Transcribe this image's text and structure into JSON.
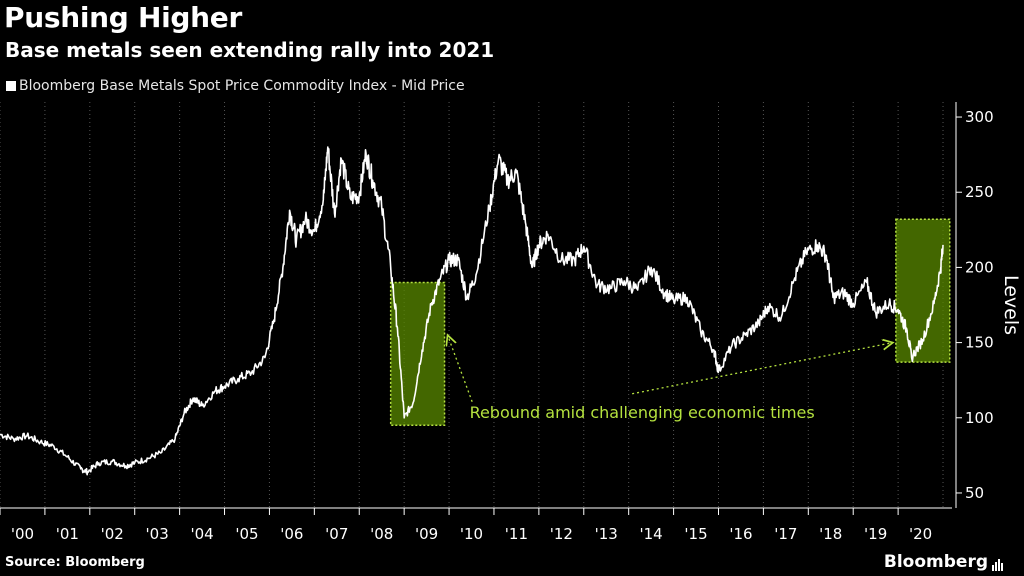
{
  "header": {
    "title": "Pushing Higher",
    "subtitle": "Base metals seen extending rally into 2021"
  },
  "legend": {
    "label": "Bloomberg Base Metals Spot Price Commodity Index - Mid Price"
  },
  "footer": {
    "source": "Source: Bloomberg",
    "brand": "Bloomberg"
  },
  "colors": {
    "line": "#ffffff",
    "highlight_fill": "#5a8a00",
    "highlight_border": "#b5e23f",
    "annotation": "#b5e23f",
    "axis": "#ffffff"
  },
  "chart_data": {
    "type": "line",
    "title": "Pushing Higher",
    "subtitle": "Base metals seen extending rally into 2021",
    "series": [
      {
        "name": "Bloomberg Base Metals Spot Price Commodity Index - Mid Price",
        "points": [
          [
            2000.0,
            89
          ],
          [
            2000.3,
            86
          ],
          [
            2000.6,
            88
          ],
          [
            2000.9,
            84
          ],
          [
            2001.2,
            81
          ],
          [
            2001.5,
            74
          ],
          [
            2001.8,
            66
          ],
          [
            2001.95,
            64
          ],
          [
            2002.2,
            70
          ],
          [
            2002.5,
            71
          ],
          [
            2002.8,
            68
          ],
          [
            2003.0,
            70
          ],
          [
            2003.3,
            73
          ],
          [
            2003.6,
            77
          ],
          [
            2003.9,
            86
          ],
          [
            2004.1,
            103
          ],
          [
            2004.3,
            113
          ],
          [
            2004.5,
            108
          ],
          [
            2004.8,
            118
          ],
          [
            2005.0,
            121
          ],
          [
            2005.3,
            126
          ],
          [
            2005.6,
            130
          ],
          [
            2005.9,
            140
          ],
          [
            2006.1,
            165
          ],
          [
            2006.3,
            200
          ],
          [
            2006.45,
            238
          ],
          [
            2006.6,
            218
          ],
          [
            2006.8,
            232
          ],
          [
            2007.0,
            224
          ],
          [
            2007.2,
            245
          ],
          [
            2007.3,
            280
          ],
          [
            2007.45,
            236
          ],
          [
            2007.6,
            272
          ],
          [
            2007.8,
            246
          ],
          [
            2008.0,
            248
          ],
          [
            2008.15,
            276
          ],
          [
            2008.3,
            258
          ],
          [
            2008.5,
            240
          ],
          [
            2008.7,
            200
          ],
          [
            2008.85,
            160
          ],
          [
            2009.0,
            100
          ],
          [
            2009.2,
            110
          ],
          [
            2009.4,
            145
          ],
          [
            2009.6,
            175
          ],
          [
            2009.8,
            192
          ],
          [
            2010.0,
            205
          ],
          [
            2010.2,
            205
          ],
          [
            2010.4,
            180
          ],
          [
            2010.6,
            195
          ],
          [
            2010.9,
            240
          ],
          [
            2011.1,
            272
          ],
          [
            2011.3,
            258
          ],
          [
            2011.5,
            263
          ],
          [
            2011.7,
            230
          ],
          [
            2011.85,
            200
          ],
          [
            2012.0,
            215
          ],
          [
            2012.2,
            222
          ],
          [
            2012.5,
            205
          ],
          [
            2012.8,
            205
          ],
          [
            2013.0,
            214
          ],
          [
            2013.3,
            188
          ],
          [
            2013.6,
            186
          ],
          [
            2013.9,
            191
          ],
          [
            2014.2,
            185
          ],
          [
            2014.5,
            200
          ],
          [
            2014.8,
            183
          ],
          [
            2015.0,
            178
          ],
          [
            2015.3,
            180
          ],
          [
            2015.6,
            158
          ],
          [
            2015.9,
            145
          ],
          [
            2016.0,
            131
          ],
          [
            2016.3,
            148
          ],
          [
            2016.6,
            155
          ],
          [
            2016.9,
            163
          ],
          [
            2017.1,
            174
          ],
          [
            2017.4,
            167
          ],
          [
            2017.7,
            193
          ],
          [
            2017.95,
            210
          ],
          [
            2018.2,
            215
          ],
          [
            2018.4,
            208
          ],
          [
            2018.55,
            180
          ],
          [
            2018.8,
            183
          ],
          [
            2019.0,
            176
          ],
          [
            2019.3,
            190
          ],
          [
            2019.5,
            170
          ],
          [
            2019.8,
            176
          ],
          [
            2020.0,
            172
          ],
          [
            2020.2,
            158
          ],
          [
            2020.3,
            140
          ],
          [
            2020.55,
            152
          ],
          [
            2020.8,
            176
          ],
          [
            2020.95,
            200
          ],
          [
            2021.0,
            215
          ]
        ]
      }
    ],
    "x_tick_labels": [
      "'00",
      "'01",
      "'02",
      "'03",
      "'04",
      "'05",
      "'06",
      "'07",
      "'08",
      "'09",
      "'10",
      "'11",
      "'12",
      "'13",
      "'14",
      "'15",
      "'16",
      "'17",
      "'18",
      "'19",
      "'20"
    ],
    "x_range": [
      2000,
      2021.2
    ],
    "ylabel": "Levels",
    "ylim": [
      40,
      310
    ],
    "yticks": [
      50,
      100,
      150,
      200,
      250,
      300
    ],
    "grid": "vertical dotted at year boundaries",
    "highlights": [
      {
        "x_range": [
          2008.7,
          2009.9
        ],
        "y_range": [
          95,
          190
        ]
      },
      {
        "x_range": [
          2019.95,
          2021.15
        ],
        "y_range": [
          137,
          232
        ]
      }
    ],
    "annotation": {
      "text": "Rebound amid challenging economic times",
      "x": 2014.3,
      "y": 100,
      "arrow_targets": [
        [
          2009.9,
          155
        ],
        [
          2019.95,
          150
        ]
      ]
    }
  }
}
